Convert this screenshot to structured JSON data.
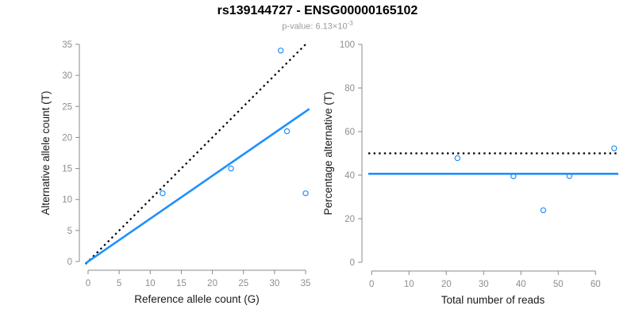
{
  "header": {
    "title": "rs139144727 - ENSG00000165102",
    "subtitle_text": "p-value: 6.13×10",
    "subtitle_exponent": "-3"
  },
  "colors": {
    "accent_blue": "#1E90FF",
    "line_black": "#000000",
    "axis_gray": "#8a8a8a",
    "tick_text_gray": "#8e8e8e",
    "axis_title_color": "#1a1a1a"
  },
  "chart_data": [
    {
      "type": "scatter",
      "panel": "left",
      "xlabel": "Reference allele count (G)",
      "ylabel": "Alternative allele count (T)",
      "xlim": [
        0,
        35
      ],
      "ylim": [
        0,
        35
      ],
      "xticks": [
        0,
        5,
        10,
        15,
        20,
        25,
        30,
        35
      ],
      "yticks": [
        0,
        5,
        10,
        15,
        20,
        25,
        30,
        35
      ],
      "grid": false,
      "points": [
        [
          12,
          11
        ],
        [
          23,
          15
        ],
        [
          31,
          34
        ],
        [
          32,
          21
        ],
        [
          35,
          11
        ]
      ],
      "lines": [
        {
          "name": "identity-line",
          "style": "dotted",
          "color": "#000000",
          "from": [
            -0.4,
            -0.4
          ],
          "to": [
            35.2,
            35.2
          ]
        },
        {
          "name": "regression-line",
          "style": "solid",
          "color": "#1E90FF",
          "from": [
            -0.4,
            -0.28
          ],
          "to": [
            35.6,
            24.6
          ]
        }
      ]
    },
    {
      "type": "scatter",
      "panel": "right",
      "xlabel": "Total number of reads",
      "ylabel": "Percentage alternative (T)",
      "xlim": [
        0,
        65
      ],
      "ylim": [
        0,
        100
      ],
      "xticks": [
        0,
        10,
        20,
        30,
        40,
        50,
        60
      ],
      "yticks": [
        0,
        20,
        40,
        60,
        80,
        100
      ],
      "grid": false,
      "points": [
        [
          23,
          47.8
        ],
        [
          38,
          39.5
        ],
        [
          46,
          23.9
        ],
        [
          53,
          39.6
        ],
        [
          65,
          52.3
        ]
      ],
      "lines": [
        {
          "name": "expected-percentage-line",
          "style": "dotted",
          "color": "#000000",
          "y": 50
        },
        {
          "name": "mean-percentage-line",
          "style": "solid",
          "color": "#1E90FF",
          "y": 40.6
        }
      ]
    }
  ]
}
